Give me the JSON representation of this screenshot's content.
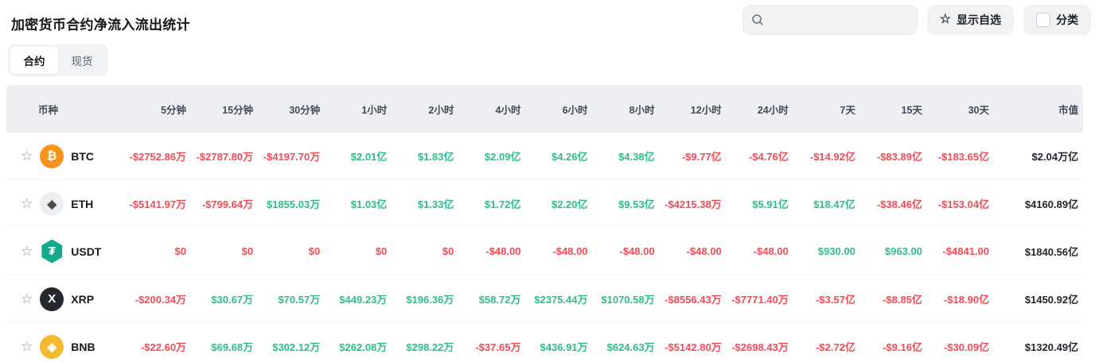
{
  "page": {
    "title": "加密货币合约净流入流出统计"
  },
  "toolbar": {
    "search_placeholder": "",
    "show_favorites_label": "显示自选",
    "category_label": "分类",
    "star_icon_glyph": "☆"
  },
  "tabs": [
    {
      "label": "合约",
      "active": true
    },
    {
      "label": "现货",
      "active": false
    }
  ],
  "colors": {
    "positive": "#2ebd85",
    "negative": "#f14b56",
    "header_bg": "#edeff2",
    "btc": "#f7931a",
    "eth_bg": "#eceef0",
    "eth_fg": "#474d57",
    "usdt": "#13aa8c",
    "xrp": "#23292f",
    "bnb": "#f3ba2f"
  },
  "table": {
    "columns": [
      "币种",
      "5分钟",
      "15分钟",
      "30分钟",
      "1小时",
      "2小时",
      "4小时",
      "6小时",
      "8小时",
      "12小时",
      "24小时",
      "7天",
      "15天",
      "30天",
      "市值"
    ],
    "rows": [
      {
        "symbol": "BTC",
        "icon": "btc-coin-icon",
        "glyph": "₿",
        "icon_bg": "#f7931a",
        "icon_fg": "#ffffff",
        "values": [
          "-$2752.86万",
          "-$2787.80万",
          "-$4197.70万",
          "$2.01亿",
          "$1.83亿",
          "$2.09亿",
          "$4.26亿",
          "$4.38亿",
          "-$9.77亿",
          "-$4.76亿",
          "-$14.92亿",
          "-$83.89亿",
          "-$183.65亿",
          "$2.04万亿"
        ]
      },
      {
        "symbol": "ETH",
        "icon": "eth-coin-icon",
        "glyph": "◆",
        "icon_bg": "#eceef0",
        "icon_fg": "#474d57",
        "values": [
          "-$5141.97万",
          "-$799.64万",
          "$1855.03万",
          "$1.03亿",
          "$1.33亿",
          "$1.72亿",
          "$2.20亿",
          "$9.53亿",
          "-$4215.38万",
          "$5.91亿",
          "$18.47亿",
          "-$38.46亿",
          "-$153.04亿",
          "$4160.89亿"
        ]
      },
      {
        "symbol": "USDT",
        "icon": "usdt-coin-icon",
        "glyph": "₮",
        "icon_bg": "#13aa8c",
        "icon_fg": "#ffffff",
        "values": [
          "$0",
          "$0",
          "$0",
          "$0",
          "$0",
          "-$48.00",
          "-$48.00",
          "-$48.00",
          "-$48.00",
          "-$48.00",
          "$930.00",
          "$963.00",
          "-$4841.00",
          "$1840.56亿"
        ]
      },
      {
        "symbol": "XRP",
        "icon": "xrp-coin-icon",
        "glyph": "X",
        "icon_bg": "#23292f",
        "icon_fg": "#ffffff",
        "values": [
          "-$200.34万",
          "$30.67万",
          "$70.57万",
          "$449.23万",
          "$196.36万",
          "$58.72万",
          "$2375.44万",
          "$1070.58万",
          "-$8556.43万",
          "-$7771.40万",
          "-$3.57亿",
          "-$8.85亿",
          "-$18.90亿",
          "$1450.92亿"
        ]
      },
      {
        "symbol": "BNB",
        "icon": "bnb-coin-icon",
        "glyph": "◈",
        "icon_bg": "#f3ba2f",
        "icon_fg": "#ffffff",
        "values": [
          "-$22.60万",
          "$69.68万",
          "$302.12万",
          "$262.08万",
          "$298.22万",
          "-$37.65万",
          "$436.91万",
          "$624.63万",
          "-$5142.80万",
          "-$2698.43万",
          "-$2.72亿",
          "-$9.16亿",
          "-$30.09亿",
          "$1320.49亿"
        ]
      }
    ]
  }
}
